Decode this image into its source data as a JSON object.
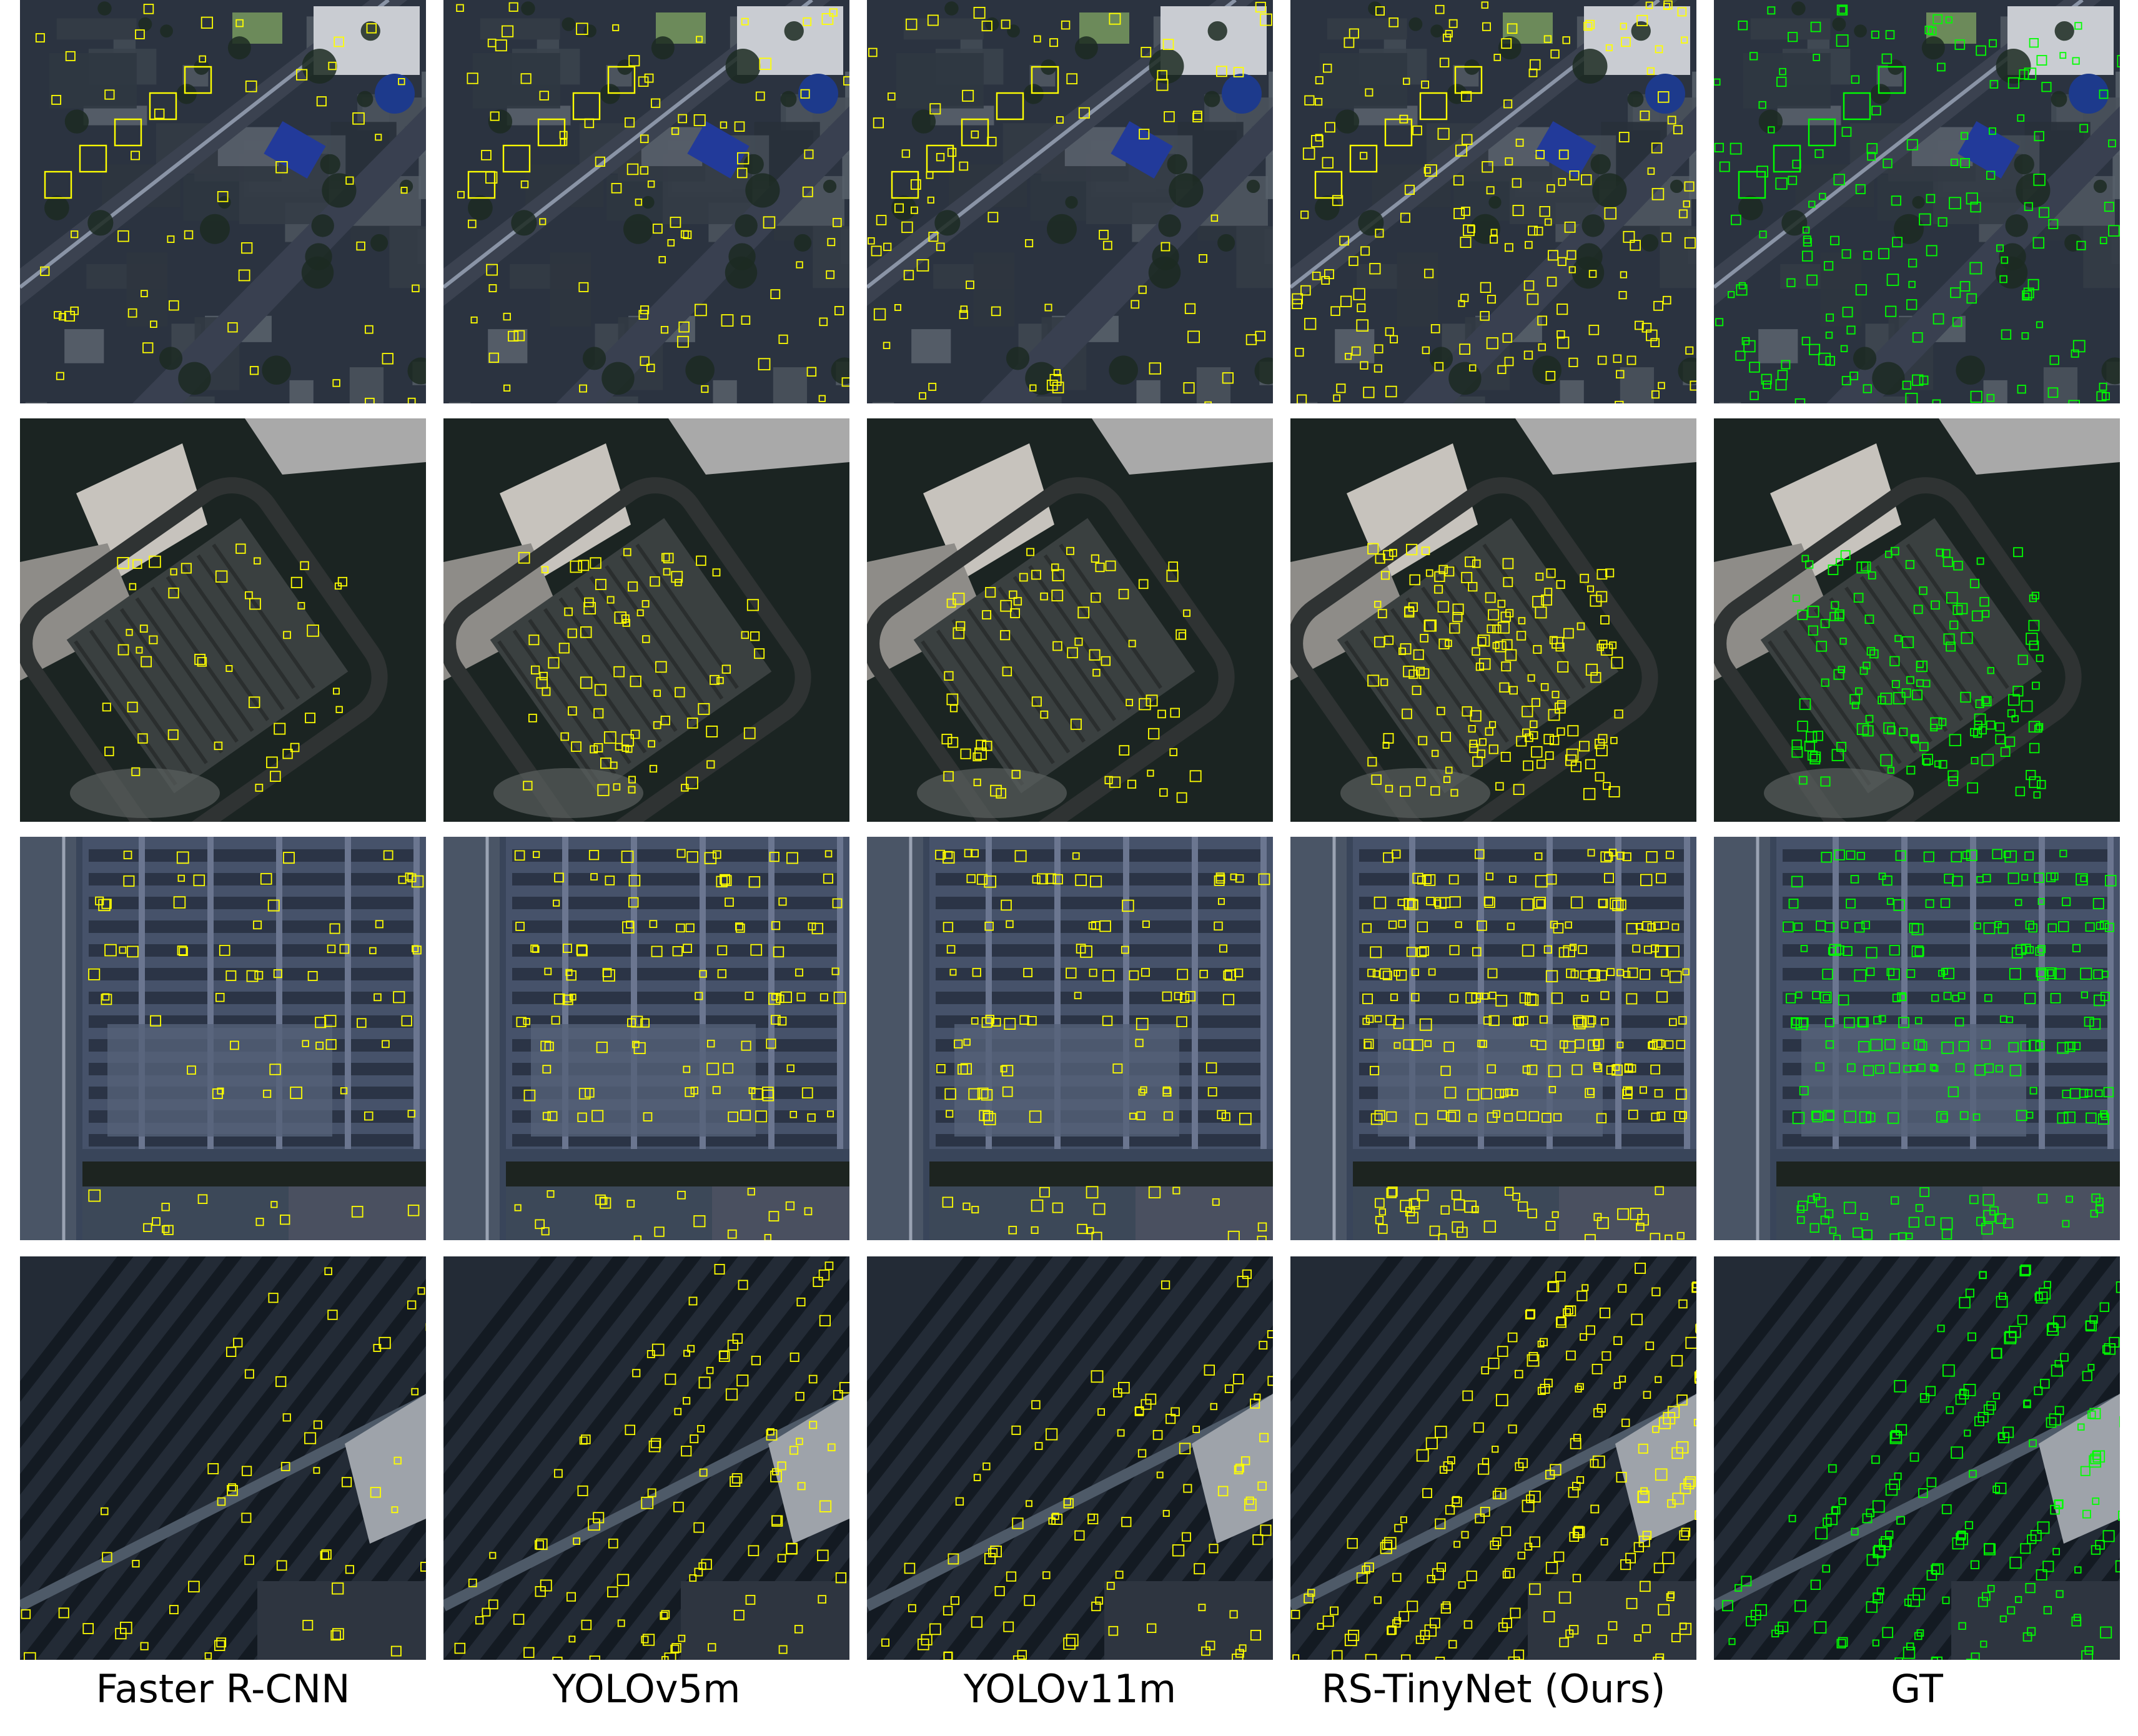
{
  "figure": {
    "columns": [
      {
        "label": "Faster R-CNN",
        "box_color": "#ffff00"
      },
      {
        "label": "YOLOv5m",
        "box_color": "#ffff00"
      },
      {
        "label": "YOLOv11m",
        "box_color": "#ffff00"
      },
      {
        "label": "RS-TinyNet (Ours)",
        "box_color": "#ffff00"
      },
      {
        "label": "GT",
        "box_color": "#00ff00"
      }
    ],
    "rows": [
      {
        "scene": "urban-street-with-parked-cars"
      },
      {
        "scene": "stadium-parking-lot"
      },
      {
        "scene": "large-grid-parking-lot"
      },
      {
        "scene": "diagonal-parking-lot"
      }
    ]
  }
}
